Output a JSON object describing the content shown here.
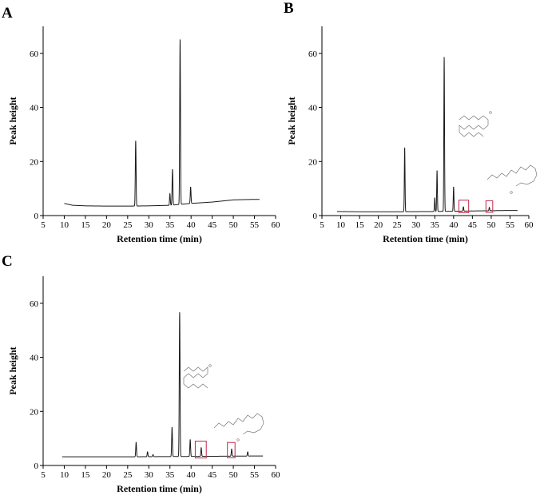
{
  "figure": {
    "panel_labels": [
      "A",
      "B",
      "C"
    ]
  },
  "chart_data": [
    {
      "panel": "A",
      "type": "line",
      "xlabel": "Retention time (min)",
      "ylabel": "Peak height",
      "xlim": [
        5,
        60
      ],
      "ylim": [
        0,
        70
      ],
      "xticks": [
        5,
        10,
        15,
        20,
        25,
        30,
        35,
        40,
        45,
        50,
        55,
        60
      ],
      "yticks": [
        0,
        20,
        40,
        60
      ],
      "grid": false,
      "baseline": [
        [
          10,
          4.5
        ],
        [
          12,
          3.8
        ],
        [
          15,
          3.6
        ],
        [
          20,
          3.5
        ],
        [
          25,
          3.5
        ],
        [
          30,
          3.6
        ],
        [
          35,
          3.8
        ],
        [
          40,
          4.5
        ],
        [
          45,
          5.0
        ],
        [
          50,
          5.8
        ],
        [
          55,
          6.0
        ],
        [
          56.2,
          6.0
        ]
      ],
      "peaks": [
        {
          "x": 26.9,
          "y": 27.5
        },
        {
          "x": 35.0,
          "y": 8.0
        },
        {
          "x": 35.6,
          "y": 17.0
        },
        {
          "x": 37.4,
          "y": 65.0
        },
        {
          "x": 39.9,
          "y": 10.5
        }
      ],
      "highlights": [],
      "structures": []
    },
    {
      "panel": "B",
      "type": "line",
      "xlabel": "Retention time (min)",
      "ylabel": "Peak height",
      "xlim": [
        5,
        60
      ],
      "ylim": [
        0,
        70
      ],
      "xticks": [
        5,
        10,
        15,
        20,
        25,
        30,
        35,
        40,
        45,
        50,
        55,
        60
      ],
      "yticks": [
        0,
        20,
        40,
        60
      ],
      "grid": false,
      "baseline": [
        [
          9,
          1.5
        ],
        [
          15,
          1.4
        ],
        [
          25,
          1.4
        ],
        [
          35,
          1.5
        ],
        [
          45,
          1.7
        ],
        [
          55,
          1.9
        ],
        [
          57,
          1.9
        ]
      ],
      "peaks": [
        {
          "x": 27.0,
          "y": 25.0
        },
        {
          "x": 35.0,
          "y": 6.5
        },
        {
          "x": 35.6,
          "y": 16.5
        },
        {
          "x": 37.5,
          "y": 58.5
        },
        {
          "x": 40.0,
          "y": 10.5
        },
        {
          "x": 42.6,
          "y": 3.2
        },
        {
          "x": 49.5,
          "y": 3.0
        }
      ],
      "highlights": [
        {
          "x0": 41.4,
          "x1": 44.0
        },
        {
          "x0": 48.6,
          "x1": 50.4
        }
      ],
      "structures": [
        "fatty acid (OH)",
        "fatty acid (OH)"
      ]
    },
    {
      "panel": "C",
      "type": "line",
      "xlabel": "Retention time (min)",
      "ylabel": "Peak height",
      "xlim": [
        5,
        60
      ],
      "ylim": [
        0,
        70
      ],
      "xticks": [
        5,
        10,
        15,
        20,
        25,
        30,
        35,
        40,
        45,
        50,
        55,
        60
      ],
      "yticks": [
        0,
        20,
        40,
        60
      ],
      "grid": false,
      "baseline": [
        [
          9.5,
          3.2
        ],
        [
          15,
          3.2
        ],
        [
          25,
          3.2
        ],
        [
          35,
          3.3
        ],
        [
          45,
          3.4
        ],
        [
          55,
          3.5
        ],
        [
          57,
          3.5
        ]
      ],
      "peaks": [
        {
          "x": 27.0,
          "y": 8.5
        },
        {
          "x": 29.7,
          "y": 5.0
        },
        {
          "x": 31.0,
          "y": 4.0
        },
        {
          "x": 35.5,
          "y": 14.0
        },
        {
          "x": 37.3,
          "y": 56.5
        },
        {
          "x": 39.8,
          "y": 9.5
        },
        {
          "x": 42.4,
          "y": 6.5
        },
        {
          "x": 49.6,
          "y": 6.0
        },
        {
          "x": 53.4,
          "y": 5.0
        }
      ],
      "highlights": [
        {
          "x0": 41.0,
          "x1": 43.6
        },
        {
          "x0": 48.6,
          "x1": 50.4
        }
      ],
      "structures": [
        "fatty acid (OH)",
        "fatty acid (OH)"
      ]
    }
  ]
}
